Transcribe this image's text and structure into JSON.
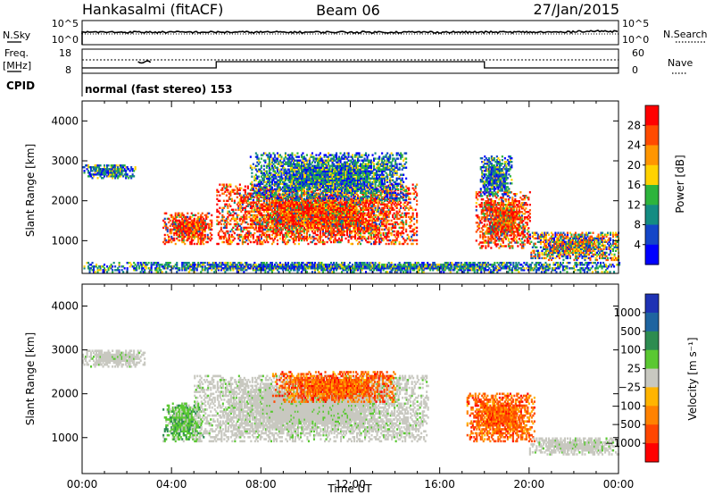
{
  "header": {
    "title": "Hankasalmi (fitACF)",
    "beam": "Beam 06",
    "date": "27/Jan/2015"
  },
  "noise_panel": {
    "left_label": "N.Sky",
    "right_label": "N.Search",
    "left_ticks": [
      "10^5",
      "10^0"
    ],
    "right_ticks": [
      "10^5",
      "10^0"
    ]
  },
  "freq_panel": {
    "left_label_line1": "Freq.",
    "left_label_line2": "[MHz]",
    "left_ticks": [
      "18",
      "8"
    ],
    "right_ticks": [
      "60",
      "0"
    ],
    "right_label": "Nave",
    "cpid_label": "CPID",
    "cpid_value": "normal (fast stereo) 153"
  },
  "chart_data": [
    {
      "type": "heatmap",
      "panel": "power",
      "ylabel": "Slant Range [km]",
      "yticks": [
        "4000",
        "3000",
        "2000",
        "1000"
      ],
      "ylim": [
        180,
        4500
      ],
      "xlim": [
        0,
        24
      ],
      "colorbar_label": "Power [dB]",
      "colorbar_ticks": [
        "28",
        "24",
        "20",
        "16",
        "12",
        "8",
        "4"
      ],
      "colorbar_colors": [
        "#ff0000",
        "#ff4b00",
        "#ff9600",
        "#ffd200",
        "#2db43c",
        "#148c82",
        "#1446c8",
        "#0000ff"
      ],
      "echo_regions": [
        {
          "t0": 0.0,
          "t1": 2.4,
          "r0": 2550,
          "r1": 2900,
          "level": "low"
        },
        {
          "t0": 0.0,
          "t1": 24.0,
          "r0": 200,
          "r1": 450,
          "level": "low"
        },
        {
          "t0": 3.6,
          "t1": 5.8,
          "r0": 900,
          "r1": 1700,
          "level": "high"
        },
        {
          "t0": 6.0,
          "t1": 15.0,
          "r0": 900,
          "r1": 2400,
          "level": "high"
        },
        {
          "t0": 7.5,
          "t1": 14.5,
          "r0": 2000,
          "r1": 3200,
          "level": "low"
        },
        {
          "t0": 17.6,
          "t1": 20.0,
          "r0": 800,
          "r1": 2200,
          "level": "high"
        },
        {
          "t0": 17.8,
          "t1": 19.2,
          "r0": 2100,
          "r1": 3100,
          "level": "low"
        },
        {
          "t0": 20.0,
          "t1": 24.0,
          "r0": 500,
          "r1": 1200,
          "level": "mid"
        }
      ]
    },
    {
      "type": "heatmap",
      "panel": "velocity",
      "ylabel": "Slant Range [km]",
      "yticks": [
        "4000",
        "3000",
        "2000",
        "1000"
      ],
      "ylim": [
        180,
        4500
      ],
      "xlim": [
        0,
        24
      ],
      "xticks": [
        "00:00",
        "04:00",
        "08:00",
        "12:00",
        "16:00",
        "20:00",
        "00:00"
      ],
      "xlabel": "Time UT",
      "colorbar_label": "Velocity [m s⁻¹]",
      "colorbar_ticks": [
        "1000",
        "500",
        "100",
        "25",
        "−25",
        "−100",
        "−500",
        "−1000"
      ],
      "colorbar_colors": [
        "#1e32b4",
        "#1e64a0",
        "#2d8c50",
        "#5ac832",
        "#c8c8c0",
        "#ffb400",
        "#ff8200",
        "#ff4600",
        "#ff0000"
      ],
      "echo_regions": [
        {
          "t0": 0.0,
          "t1": 2.8,
          "r0": 2600,
          "r1": 3000,
          "level": "ground"
        },
        {
          "t0": 3.6,
          "t1": 5.4,
          "r0": 900,
          "r1": 1800,
          "level": "positive"
        },
        {
          "t0": 5.0,
          "t1": 15.5,
          "r0": 900,
          "r1": 2400,
          "level": "ground"
        },
        {
          "t0": 8.5,
          "t1": 14.0,
          "r0": 1800,
          "r1": 2500,
          "level": "negative"
        },
        {
          "t0": 17.2,
          "t1": 20.2,
          "r0": 900,
          "r1": 2000,
          "level": "negative"
        },
        {
          "t0": 20.0,
          "t1": 24.0,
          "r0": 600,
          "r1": 1000,
          "level": "ground"
        }
      ]
    }
  ]
}
